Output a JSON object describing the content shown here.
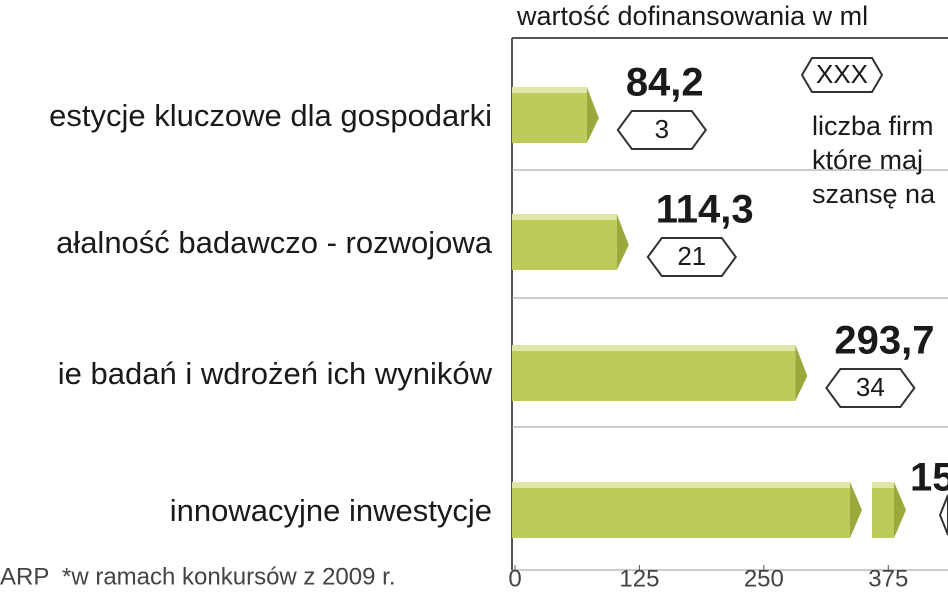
{
  "chart_data": {
    "type": "bar",
    "orientation": "horizontal",
    "header": "wartość dofinansowania w ml",
    "categories": [
      "estycje kluczowe dla gospodarki",
      "ałalność badawczo - rozwojowa",
      "ie badań i wdrożeń ich wyników",
      "innowacyjne inwestycje"
    ],
    "values": [
      84.2,
      114.3,
      293.7,
      null
    ],
    "value_labels": [
      "84,2",
      "114,3",
      "293,7",
      "15"
    ],
    "counts": [
      3,
      21,
      34,
      null
    ],
    "color": "#bccb5a",
    "xlim": [
      0,
      435
    ],
    "xticks": [
      0,
      125,
      250,
      375
    ],
    "legend": {
      "symbol": "XXX",
      "lines": [
        "liczba firm",
        "które maj",
        "szansę na"
      ]
    },
    "source": "ARP",
    "note": "*w ramach konkursów z 2009 r."
  }
}
